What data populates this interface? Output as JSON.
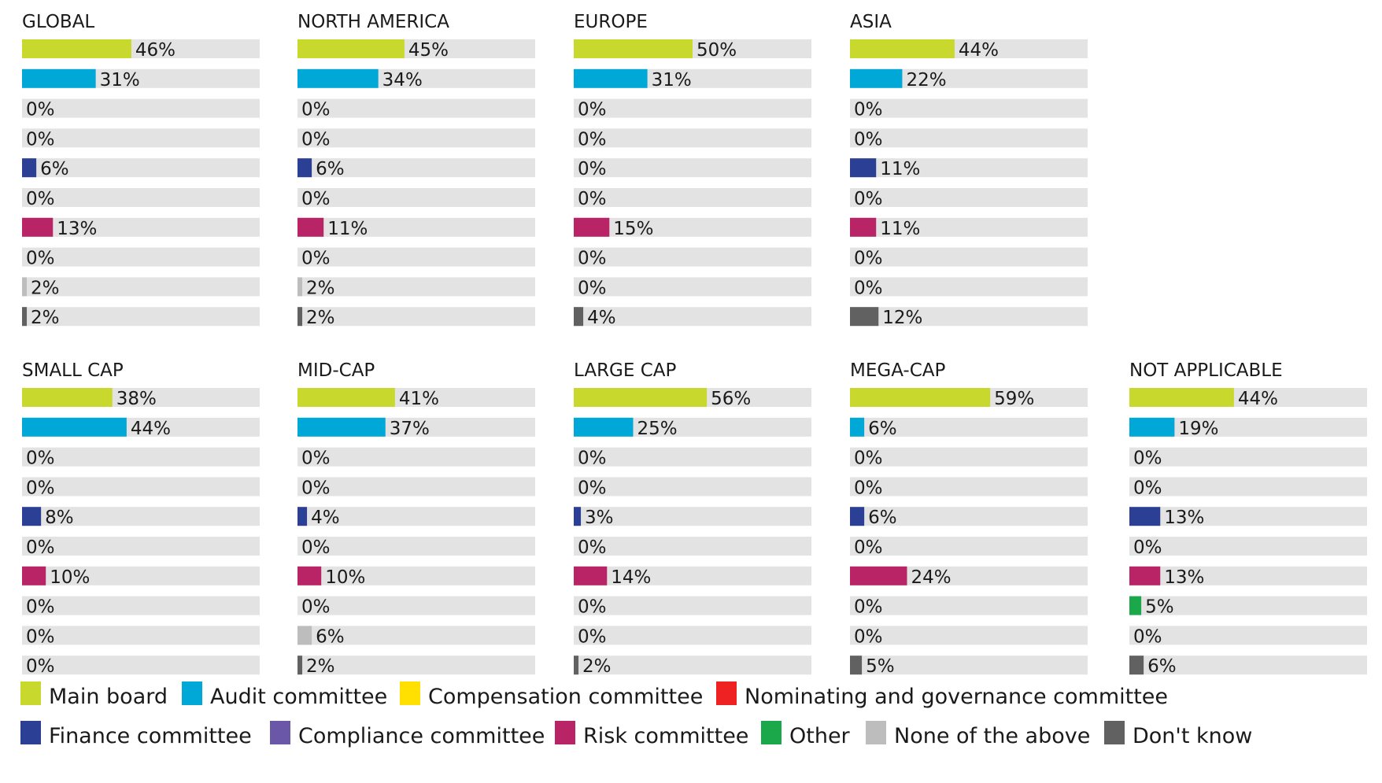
{
  "chart_data": {
    "type": "bar",
    "orientation": "horizontal",
    "xlim": [
      0,
      100
    ],
    "legend_position": "bottom",
    "categories": [
      "Main board",
      "Audit committee",
      "Compensation committee",
      "Nominating and governance committee",
      "Finance committee",
      "Compliance committee",
      "Risk committee",
      "Other",
      "None of the above",
      "Don't know"
    ],
    "colors": [
      "#c8d82c",
      "#00a8d8",
      "#ffe000",
      "#ee2222",
      "#2b3f94",
      "#6b57a8",
      "#b82465",
      "#1aa84a",
      "#bdbdbd",
      "#616161"
    ],
    "track_color": "#e3e3e4",
    "panels": [
      {
        "title": "GLOBAL",
        "values": [
          46,
          31,
          0,
          0,
          6,
          0,
          13,
          0,
          2,
          2
        ],
        "labels": [
          "46%",
          "31%",
          "0%",
          "0%",
          "6%",
          "0%",
          "13%",
          "0%",
          "2%",
          "2%"
        ]
      },
      {
        "title": "NORTH AMERICA",
        "values": [
          45,
          34,
          0,
          0,
          6,
          0,
          11,
          0,
          2,
          2
        ],
        "labels": [
          "45%",
          "34%",
          "0%",
          "0%",
          "6%",
          "0%",
          "11%",
          "0%",
          "2%",
          "2%"
        ]
      },
      {
        "title": "EUROPE",
        "values": [
          50,
          31,
          0,
          0,
          0,
          0,
          15,
          0,
          0,
          4
        ],
        "labels": [
          "50%",
          "31%",
          "0%",
          "0%",
          "0%",
          "0%",
          "15%",
          "0%",
          "0%",
          "4%"
        ]
      },
      {
        "title": "ASIA",
        "values": [
          44,
          22,
          0,
          0,
          11,
          0,
          11,
          0,
          0,
          12
        ],
        "labels": [
          "44%",
          "22%",
          "0%",
          "0%",
          "11%",
          "0%",
          "11%",
          "0%",
          "0%",
          "12%"
        ]
      },
      {
        "title": "SMALL CAP",
        "values": [
          38,
          44,
          0,
          0,
          8,
          0,
          10,
          0,
          0,
          0
        ],
        "labels": [
          "38%",
          "44%",
          "0%",
          "0%",
          "8%",
          "0%",
          "10%",
          "0%",
          "0%",
          "0%"
        ]
      },
      {
        "title": "MID-CAP",
        "values": [
          41,
          37,
          0,
          0,
          4,
          0,
          10,
          0,
          6,
          2
        ],
        "labels": [
          "41%",
          "37%",
          "0%",
          "0%",
          "4%",
          "0%",
          "10%",
          "0%",
          "6%",
          "2%"
        ]
      },
      {
        "title": "LARGE CAP",
        "values": [
          56,
          25,
          0,
          0,
          3,
          0,
          14,
          0,
          0,
          2
        ],
        "labels": [
          "56%",
          "25%",
          "0%",
          "0%",
          "3%",
          "0%",
          "14%",
          "0%",
          "0%",
          "2%"
        ]
      },
      {
        "title": "MEGA-CAP",
        "values": [
          59,
          6,
          0,
          0,
          6,
          0,
          24,
          0,
          0,
          5
        ],
        "labels": [
          "59%",
          "6%",
          "0%",
          "0%",
          "6%",
          "0%",
          "24%",
          "0%",
          "0%",
          "5%"
        ]
      },
      {
        "title": "NOT APPLICABLE",
        "values": [
          44,
          19,
          0,
          0,
          13,
          0,
          13,
          5,
          0,
          6
        ],
        "labels": [
          "44%",
          "19%",
          "0%",
          "0%",
          "13%",
          "0%",
          "13%",
          "5%",
          "0%",
          "6%"
        ]
      }
    ]
  }
}
